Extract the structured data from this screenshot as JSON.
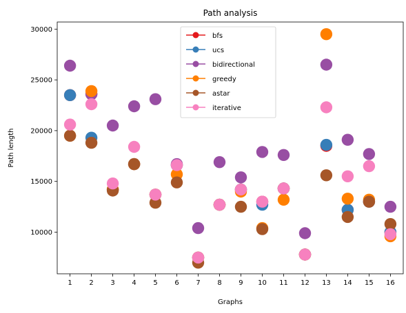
{
  "chart_data": {
    "type": "scatter",
    "title": "Path analysis",
    "xlabel": "Graphs",
    "ylabel": "Path length",
    "x": [
      1,
      2,
      3,
      4,
      5,
      6,
      7,
      8,
      9,
      10,
      11,
      12,
      13,
      14,
      15,
      16
    ],
    "xlim": [
      0.4,
      16.6
    ],
    "ylim": [
      5900,
      30700
    ],
    "yticks": [
      10000,
      15000,
      20000,
      25000,
      30000
    ],
    "grid": false,
    "legend_position": "upper center",
    "series": [
      {
        "name": "bfs",
        "color": "#e41a1c",
        "values": [
          23500,
          23600,
          14200,
          16700,
          13700,
          16600,
          7500,
          12700,
          14200,
          13000,
          14300,
          7800,
          18500,
          12200,
          13000,
          10000
        ]
      },
      {
        "name": "ucs",
        "color": "#377eb8",
        "values": [
          23500,
          19300,
          14200,
          16700,
          13700,
          16600,
          7500,
          12700,
          14200,
          12700,
          14300,
          7800,
          18600,
          12200,
          13000,
          10000
        ]
      },
      {
        "name": "bidirectional",
        "color": "#984ea3",
        "values": [
          26400,
          23600,
          20500,
          22400,
          23100,
          16700,
          10400,
          16900,
          15400,
          17900,
          17600,
          9900,
          26500,
          19100,
          17700,
          12500
        ]
      },
      {
        "name": "greedy",
        "color": "#ff7f00",
        "values": [
          19500,
          23900,
          14200,
          16700,
          13700,
          15700,
          7500,
          12700,
          14000,
          10400,
          13200,
          7800,
          29500,
          13300,
          13200,
          9600
        ]
      },
      {
        "name": "astar",
        "color": "#a65628",
        "values": [
          19500,
          18800,
          14100,
          16700,
          12900,
          14900,
          7000,
          12700,
          12500,
          10300,
          14300,
          7800,
          15600,
          11500,
          13000,
          10800
        ]
      },
      {
        "name": "iterative",
        "color": "#f781bf",
        "values": [
          20600,
          22600,
          14800,
          18400,
          13700,
          16600,
          7500,
          12700,
          14200,
          13000,
          14300,
          7800,
          22300,
          15500,
          16500,
          9800
        ]
      }
    ]
  }
}
